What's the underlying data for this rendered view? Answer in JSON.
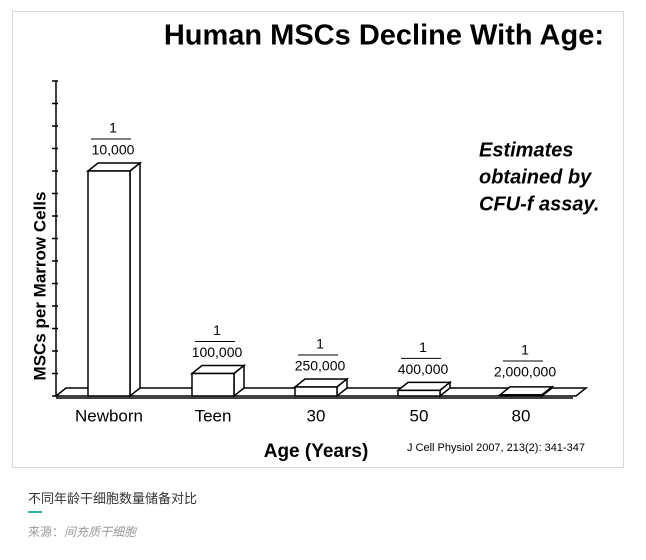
{
  "chart_data": {
    "type": "bar",
    "title": "Human MSCs Decline With Age:",
    "y_label": "MSCs per Marrow Cells",
    "x_label": "Age (Years)",
    "categories": [
      "Newborn",
      "Teen",
      "30",
      "50",
      "80"
    ],
    "values": [
      0.0001,
      1e-05,
      4e-06,
      2.5e-06,
      5e-07
    ],
    "value_labels": [
      [
        "1",
        "10,000"
      ],
      [
        "1",
        "100,000"
      ],
      [
        "1",
        "250,000"
      ],
      [
        "1",
        "400,000"
      ],
      [
        "1",
        "2,000,000"
      ]
    ],
    "color": "#ffffff",
    "ylim": [
      0,
      0.00014
    ],
    "yticks": [
      0,
      1e-05,
      2e-05,
      3e-05,
      4e-05,
      5e-05,
      6e-05,
      7e-05,
      8e-05,
      9e-05,
      0.0001,
      0.00011,
      0.00012,
      0.00013,
      0.00014
    ],
    "annotation": [
      "Estimates",
      "obtained by",
      "CFU-f assay."
    ],
    "source": "J Cell Physiol 2007, 213(2): 341-347"
  },
  "caption": {
    "title": "不同年龄干细胞数量储备对比",
    "source_label": "来源：",
    "source": "间充质干细胞"
  }
}
